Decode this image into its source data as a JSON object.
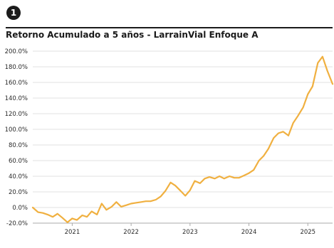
{
  "header": {
    "badge": "1",
    "title": "Retorno Acumulado a 5 años - LarrainVial Enfoque A"
  },
  "colors": {
    "line": "#f0b040",
    "grid": "#e0e0e0",
    "axis": "#aaaaaa"
  },
  "chart_data": {
    "type": "line",
    "title": "Retorno Acumulado a 5 años - LarrainVial Enfoque A",
    "xlabel": "",
    "ylabel": "",
    "ylim": [
      -20,
      200
    ],
    "xlim": [
      2020.33,
      2025.42
    ],
    "grid": "horizontal",
    "y_ticks": [
      "200.0%",
      "180.0%",
      "160.0%",
      "140.0%",
      "120.0%",
      "100.0%",
      "80.0%",
      "60.0%",
      "40.0%",
      "20.0%",
      "0.0%",
      "-20.0%"
    ],
    "y_tick_values": [
      200,
      180,
      160,
      140,
      120,
      100,
      80,
      60,
      40,
      20,
      0,
      -20
    ],
    "x_ticks": [
      "2021",
      "2022",
      "2023",
      "2024",
      "2025"
    ],
    "x_tick_values": [
      2021,
      2022,
      2023,
      2024,
      2025
    ],
    "series": [
      {
        "x": [
          2020.33,
          2020.42,
          2020.5,
          2020.58,
          2020.67,
          2020.75,
          2020.83,
          2020.92,
          2021.0,
          2021.08,
          2021.17,
          2021.25,
          2021.33,
          2021.42,
          2021.5,
          2021.58,
          2021.67,
          2021.75,
          2021.83,
          2021.92,
          2022.0,
          2022.08,
          2022.17,
          2022.25,
          2022.33,
          2022.42,
          2022.5,
          2022.58,
          2022.67,
          2022.75,
          2022.83,
          2022.92,
          2023.0,
          2023.08,
          2023.17,
          2023.25,
          2023.33,
          2023.42,
          2023.5,
          2023.58,
          2023.67,
          2023.75,
          2023.83,
          2023.92,
          2024.0,
          2024.08,
          2024.17,
          2024.25,
          2024.33,
          2024.42,
          2024.5,
          2024.58,
          2024.67,
          2024.75,
          2024.83,
          2024.92,
          2025.0,
          2025.08,
          2025.17,
          2025.25,
          2025.33,
          2025.42
        ],
        "values": [
          0,
          -6,
          -7,
          -9,
          -12,
          -8,
          -13,
          -19,
          -14,
          -16,
          -10,
          -12,
          -5,
          -9,
          5,
          -3,
          1,
          7,
          1,
          3,
          5,
          6,
          7,
          8,
          8,
          10,
          14,
          21,
          32,
          28,
          22,
          15,
          22,
          34,
          31,
          37,
          39,
          37,
          40,
          37,
          40,
          38,
          38,
          41,
          44,
          48,
          60,
          66,
          75,
          89,
          95,
          97,
          92,
          108,
          117,
          128,
          145,
          155,
          185,
          193,
          175,
          158
        ]
      }
    ]
  }
}
